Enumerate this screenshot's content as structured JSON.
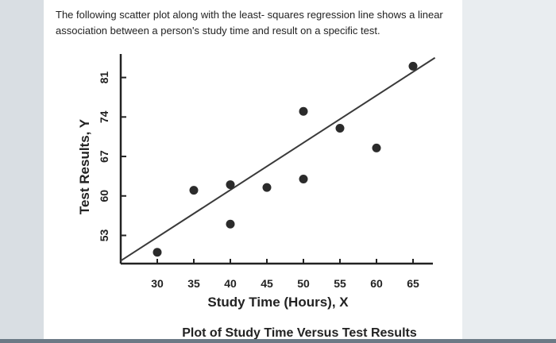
{
  "question": {
    "text": "The following scatter plot along with the least- squares regression line shows a linear association between a person's study time and result on a specific test."
  },
  "chart_data": {
    "type": "scatter",
    "title": "Plot of Study Time Versus Test Results",
    "xlabel": "Study Time (Hours), X",
    "ylabel": "Test Results, Y",
    "xlim": [
      25,
      70
    ],
    "ylim": [
      48,
      87
    ],
    "xticks": [
      30,
      35,
      40,
      45,
      50,
      55,
      60,
      65
    ],
    "yticks": [
      53,
      60,
      67,
      74,
      81
    ],
    "points": [
      {
        "x": 30,
        "y": 50
      },
      {
        "x": 35,
        "y": 61
      },
      {
        "x": 40,
        "y": 62
      },
      {
        "x": 40,
        "y": 55
      },
      {
        "x": 45,
        "y": 61.5
      },
      {
        "x": 50,
        "y": 63
      },
      {
        "x": 50,
        "y": 75
      },
      {
        "x": 55,
        "y": 72
      },
      {
        "x": 60,
        "y": 68.5
      },
      {
        "x": 65,
        "y": 83
      }
    ],
    "regression_line": {
      "x": [
        25,
        68
      ],
      "y": [
        48.5,
        84.5
      ]
    },
    "colors": {
      "points": "#2b2b2b",
      "line": "#3a3a3a",
      "axes": "#222222"
    }
  }
}
